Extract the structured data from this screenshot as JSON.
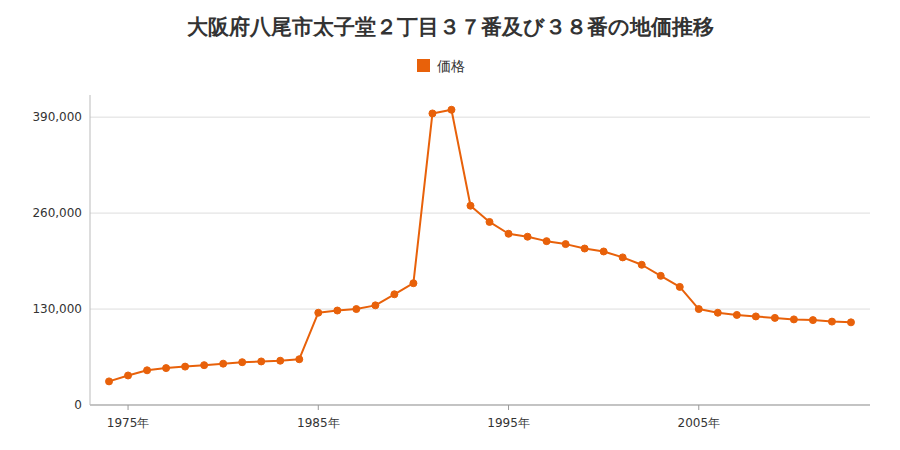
{
  "chart_data": {
    "type": "line",
    "title": "大阪府八尾市太子堂２丁目３７番及び３８番の地価推移",
    "x": [
      1974,
      1975,
      1976,
      1977,
      1978,
      1979,
      1980,
      1981,
      1982,
      1983,
      1984,
      1985,
      1986,
      1987,
      1988,
      1989,
      1990,
      1991,
      1992,
      1993,
      1994,
      1995,
      1996,
      1997,
      1998,
      1999,
      2000,
      2001,
      2002,
      2003,
      2004,
      2005,
      2006,
      2007,
      2008,
      2009,
      2010,
      2011,
      2012,
      2013
    ],
    "series": [
      {
        "name": "価格",
        "color": "#e8610a",
        "marker": "circle",
        "line_style": "solid",
        "values": [
          32000,
          40000,
          47000,
          50000,
          52000,
          54000,
          56000,
          58000,
          59000,
          60000,
          62000,
          125000,
          128000,
          130000,
          135000,
          150000,
          165000,
          395000,
          400000,
          270000,
          248000,
          232000,
          228000,
          222000,
          218000,
          212000,
          208000,
          200000,
          190000,
          175000,
          160000,
          130000,
          125000,
          122000,
          120000,
          118000,
          116000,
          115000,
          113000,
          112000
        ]
      }
    ],
    "xlim": [
      1973,
      2014
    ],
    "xticks": [
      {
        "value": 1975,
        "label": "1975年"
      },
      {
        "value": 1985,
        "label": "1985年"
      },
      {
        "value": 1995,
        "label": "1995年"
      },
      {
        "value": 2005,
        "label": "2005年"
      }
    ],
    "ylim": [
      0,
      420000
    ],
    "yticks": [
      0,
      {
        "value": 130000,
        "label": "130,000"
      },
      {
        "value": 260000,
        "label": "260,000"
      },
      {
        "value": 390000,
        "label": "390,000"
      }
    ],
    "grid": "y",
    "legend": "top"
  }
}
